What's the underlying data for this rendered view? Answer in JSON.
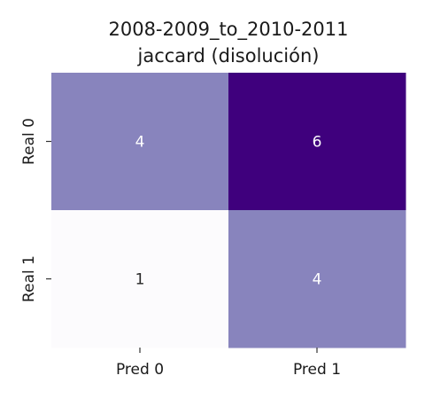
{
  "chart_data": {
    "type": "heatmap",
    "title": [
      "2008-2009_to_2010-2011",
      "jaccard (disolución)"
    ],
    "row_labels": [
      "Real 0",
      "Real 1"
    ],
    "col_labels": [
      "Pred 0",
      "Pred 1"
    ],
    "values": [
      [
        4,
        6
      ],
      [
        1,
        4
      ]
    ],
    "colormap": "Purples",
    "vmin": 1,
    "vmax": 6,
    "colorbar": false
  },
  "colors": {
    "low": "#fcfbfd",
    "mid": "#8884bd",
    "high": "#3f007d",
    "text_dark": "#262626",
    "text_light": "#ffffff"
  }
}
